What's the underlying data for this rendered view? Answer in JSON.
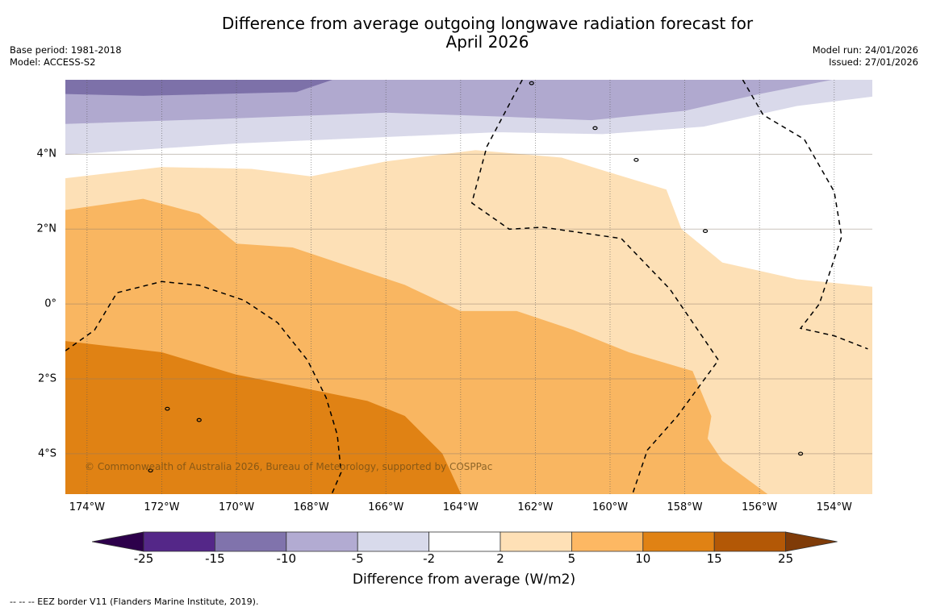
{
  "header": {
    "title_line1": "Difference from average outgoing longwave radiation forecast for",
    "title_line2": "April 2026",
    "base_period": "Base period: 1981-2018",
    "model": "Model: ACCESS-S2",
    "model_run": "Model run: 24/01/2026",
    "issued": "Issued: 27/01/2026"
  },
  "map": {
    "lon_range": [
      -174.58,
      -152.98
    ],
    "lat_range": [
      -5.08,
      5.99
    ],
    "lat_ticks": [
      {
        "value": 4,
        "label": "4°N"
      },
      {
        "value": 2,
        "label": "2°N"
      },
      {
        "value": 0,
        "label": "0°"
      },
      {
        "value": -2,
        "label": "2°S"
      },
      {
        "value": -4,
        "label": "4°S"
      }
    ],
    "lon_ticks": [
      {
        "value": -174,
        "label": "174°W"
      },
      {
        "value": -172,
        "label": "172°W"
      },
      {
        "value": -170,
        "label": "170°W"
      },
      {
        "value": -168,
        "label": "168°W"
      },
      {
        "value": -166,
        "label": "166°W"
      },
      {
        "value": -164,
        "label": "164°W"
      },
      {
        "value": -162,
        "label": "162°W"
      },
      {
        "value": -160,
        "label": "160°W"
      },
      {
        "value": -158,
        "label": "158°W"
      },
      {
        "value": -156,
        "label": "156°W"
      },
      {
        "value": -154,
        "label": "154°W"
      }
    ],
    "copyright": "© Commonwealth of Australia 2026, Bureau of Meteorology, supported by COSPPac",
    "bands": [
      {
        "name": "-15 to -10",
        "color": "#7d71a9",
        "poly": [
          [
            -174.58,
            5.99
          ],
          [
            -167.4,
            5.99
          ],
          [
            -168.4,
            5.65
          ],
          [
            -172.5,
            5.55
          ],
          [
            -174.58,
            5.6
          ]
        ]
      },
      {
        "name": "-10 to -5",
        "color": "#b0a9cf",
        "poly": [
          [
            -174.58,
            5.6
          ],
          [
            -172.5,
            5.55
          ],
          [
            -168.4,
            5.65
          ],
          [
            -167.4,
            5.99
          ],
          [
            -154.0,
            5.99
          ],
          [
            -156.0,
            5.6
          ],
          [
            -158.0,
            5.15
          ],
          [
            -160.5,
            4.9
          ],
          [
            -163.0,
            5.0
          ],
          [
            -166.0,
            5.1
          ],
          [
            -170.0,
            4.95
          ],
          [
            -174.58,
            4.8
          ]
        ]
      },
      {
        "name": "-5 to -2",
        "color": "#d9d9ea",
        "poly": [
          [
            -174.58,
            4.8
          ],
          [
            -170.0,
            4.95
          ],
          [
            -166.0,
            5.1
          ],
          [
            -163.0,
            5.0
          ],
          [
            -160.5,
            4.9
          ],
          [
            -158.0,
            5.15
          ],
          [
            -156.0,
            5.6
          ],
          [
            -154.0,
            5.99
          ],
          [
            -152.98,
            5.99
          ],
          [
            -152.98,
            5.55
          ],
          [
            -155.0,
            5.3
          ],
          [
            -157.5,
            4.75
          ],
          [
            -160.2,
            4.55
          ],
          [
            -163.0,
            4.6
          ],
          [
            -166.5,
            4.45
          ],
          [
            -170.0,
            4.3
          ],
          [
            -174.58,
            4.0
          ]
        ]
      },
      {
        "name": "2 to 5",
        "color": "#fde0b6",
        "poly": [
          [
            -174.58,
            3.35
          ],
          [
            -172.0,
            3.65
          ],
          [
            -169.6,
            3.6
          ],
          [
            -168.0,
            3.4
          ],
          [
            -166.0,
            3.8
          ],
          [
            -163.6,
            4.1
          ],
          [
            -161.3,
            3.9
          ],
          [
            -160.0,
            3.5
          ],
          [
            -158.5,
            3.05
          ],
          [
            -158.1,
            2.0
          ],
          [
            -157.0,
            1.1
          ],
          [
            -155.0,
            0.65
          ],
          [
            -152.98,
            0.45
          ],
          [
            -152.98,
            -5.08
          ],
          [
            -155.8,
            -5.08
          ],
          [
            -157.0,
            -4.2
          ],
          [
            -157.4,
            -3.6
          ],
          [
            -157.3,
            -3.0
          ],
          [
            -157.8,
            -1.8
          ],
          [
            -159.5,
            -1.3
          ],
          [
            -161.0,
            -0.7
          ],
          [
            -162.5,
            -0.2
          ],
          [
            -164.0,
            -0.2
          ],
          [
            -165.5,
            0.5
          ],
          [
            -167.0,
            1.0
          ],
          [
            -168.5,
            1.5
          ],
          [
            -170.0,
            1.6
          ],
          [
            -171.0,
            2.4
          ],
          [
            -172.5,
            2.8
          ],
          [
            -174.58,
            2.5
          ]
        ]
      },
      {
        "name": "5 to 10",
        "color": "#f9b661",
        "poly": [
          [
            -174.58,
            2.5
          ],
          [
            -172.5,
            2.8
          ],
          [
            -171.0,
            2.4
          ],
          [
            -170.0,
            1.6
          ],
          [
            -168.5,
            1.5
          ],
          [
            -167.0,
            1.0
          ],
          [
            -165.5,
            0.5
          ],
          [
            -164.0,
            -0.2
          ],
          [
            -162.5,
            -0.2
          ],
          [
            -161.0,
            -0.7
          ],
          [
            -159.5,
            -1.3
          ],
          [
            -157.8,
            -1.8
          ],
          [
            -157.3,
            -3.0
          ],
          [
            -157.4,
            -3.6
          ],
          [
            -157.0,
            -4.2
          ],
          [
            -155.8,
            -5.08
          ],
          [
            -164.0,
            -5.08
          ],
          [
            -164.5,
            -4.0
          ],
          [
            -165.5,
            -3.0
          ],
          [
            -166.5,
            -2.6
          ],
          [
            -168.0,
            -2.3
          ],
          [
            -170.0,
            -1.9
          ],
          [
            -172.0,
            -1.3
          ],
          [
            -174.58,
            -1.0
          ]
        ]
      },
      {
        "name": "10 to 15",
        "color": "#e08214",
        "poly": [
          [
            -174.58,
            -1.0
          ],
          [
            -172.0,
            -1.3
          ],
          [
            -170.0,
            -1.9
          ],
          [
            -168.0,
            -2.3
          ],
          [
            -166.5,
            -2.6
          ],
          [
            -165.5,
            -3.0
          ],
          [
            -164.5,
            -4.0
          ],
          [
            -164.0,
            -5.08
          ],
          [
            -174.58,
            -5.08
          ]
        ]
      }
    ],
    "eez_lines": [
      [
        [
          -174.58,
          -1.25
        ],
        [
          -173.8,
          -0.7
        ],
        [
          -173.2,
          0.3
        ],
        [
          -172.0,
          0.6
        ],
        [
          -171.0,
          0.5
        ],
        [
          -169.8,
          0.1
        ],
        [
          -168.9,
          -0.5
        ],
        [
          -168.1,
          -1.5
        ],
        [
          -167.6,
          -2.5
        ],
        [
          -167.3,
          -3.5
        ],
        [
          -167.2,
          -4.5
        ],
        [
          -167.45,
          -5.08
        ]
      ],
      [
        [
          -162.35,
          5.99
        ],
        [
          -163.3,
          4.2
        ],
        [
          -163.7,
          2.7
        ],
        [
          -162.7,
          2.0
        ],
        [
          -161.8,
          2.05
        ],
        [
          -159.7,
          1.75
        ],
        [
          -158.4,
          0.4
        ],
        [
          -157.1,
          -1.5
        ],
        [
          -158.2,
          -3.0
        ],
        [
          -159.0,
          -3.9
        ],
        [
          -159.4,
          -5.08
        ]
      ],
      [
        [
          -156.45,
          5.99
        ],
        [
          -155.9,
          5.05
        ],
        [
          -154.8,
          4.4
        ],
        [
          -154.0,
          3.0
        ],
        [
          -153.8,
          1.8
        ],
        [
          -154.4,
          0.0
        ],
        [
          -154.9,
          -0.65
        ],
        [
          -154.0,
          -0.85
        ],
        [
          -153.1,
          -1.2
        ]
      ]
    ],
    "islands": [
      {
        "lon": -171.85,
        "lat": -2.8
      },
      {
        "lon": -171.0,
        "lat": -3.1
      },
      {
        "lon": -159.3,
        "lat": 3.85
      },
      {
        "lon": -157.45,
        "lat": 1.95
      },
      {
        "lon": -154.9,
        "lat": -4.0
      },
      {
        "lon": -172.3,
        "lat": -4.45
      },
      {
        "lon": -162.1,
        "lat": 5.9
      },
      {
        "lon": -160.4,
        "lat": 4.7
      }
    ]
  },
  "colorbar": {
    "ticks": [
      "-25",
      "-15",
      "-10",
      "-5",
      "-2",
      "2",
      "5",
      "10",
      "15",
      "25"
    ],
    "colors": [
      "#2d004b",
      "#542788",
      "#8073ac",
      "#b2abd2",
      "#d8daeb",
      "#ffffff",
      "#fee0b6",
      "#fdb863",
      "#e08214",
      "#b35806",
      "#7f3b08"
    ],
    "label": "Difference from average (W/m2)"
  },
  "footnote": "--  --  -- EEZ border V11 (Flanders Marine Institute, 2019)."
}
